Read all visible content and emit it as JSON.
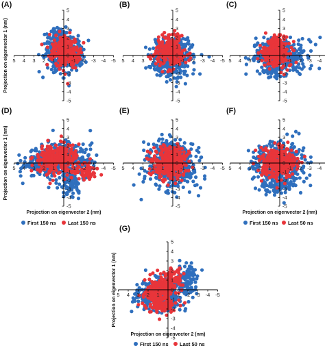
{
  "figure": {
    "colors": {
      "first": "#2f6fbd",
      "last": "#e8353a"
    }
  },
  "chart_data": [
    {
      "panel": "(A)",
      "type": "scatter",
      "xlabel": "",
      "ylabel": "Projection on eigenvector 1 (nm)",
      "xlim": [
        5,
        -5
      ],
      "ylim": [
        -5,
        5
      ],
      "x_reversed": true,
      "xticks": [
        5,
        4,
        3,
        2,
        1,
        0,
        -1,
        -2,
        -3,
        -4,
        -5
      ],
      "yticks": [
        5,
        4,
        3,
        2,
        1,
        0,
        -1,
        -2,
        -3,
        -4,
        -5
      ],
      "series": [
        {
          "name": "First 150 ns",
          "color": "#2f6fbd",
          "clusters": [
            {
              "cx": 0.3,
              "cy": 0.4,
              "sx": 0.8,
              "sy": 1.1,
              "n": 330
            },
            {
              "cx": -1.3,
              "cy": -0.1,
              "sx": 0.35,
              "sy": 0.7,
              "n": 90
            },
            {
              "cx": 0.5,
              "cy": 2.1,
              "sx": 0.5,
              "sy": 0.4,
              "n": 40
            }
          ]
        },
        {
          "name": "Last 150 ns",
          "color": "#e8353a",
          "clusters": [
            {
              "cx": 0.0,
              "cy": 0.5,
              "sx": 0.7,
              "sy": 0.9,
              "n": 220
            },
            {
              "cx": -0.9,
              "cy": 0.2,
              "sx": 0.3,
              "sy": 0.5,
              "n": 60
            }
          ]
        }
      ]
    },
    {
      "panel": "(B)",
      "type": "scatter",
      "xlabel": "",
      "ylabel": "",
      "xlim": [
        5,
        -5
      ],
      "ylim": [
        -5,
        5
      ],
      "x_reversed": true,
      "xticks": [
        5,
        4,
        3,
        2,
        1,
        0,
        -1,
        -2,
        -3,
        -4,
        -5
      ],
      "yticks": [
        5,
        4,
        3,
        2,
        1,
        0,
        -1,
        -2,
        -3,
        -4,
        -5
      ],
      "series": [
        {
          "name": "First 150 ns",
          "color": "#2f6fbd",
          "clusters": [
            {
              "cx": 0.1,
              "cy": -0.3,
              "sx": 1.0,
              "sy": 1.0,
              "n": 380
            },
            {
              "cx": 0.0,
              "cy": 1.4,
              "sx": 0.6,
              "sy": 0.4,
              "n": 40
            }
          ]
        },
        {
          "name": "Last 50 ns",
          "color": "#e8353a",
          "clusters": [
            {
              "cx": 0.2,
              "cy": 0.2,
              "sx": 0.75,
              "sy": 0.8,
              "n": 220
            },
            {
              "cx": 0.0,
              "cy": 1.7,
              "sx": 0.4,
              "sy": 0.4,
              "n": 30
            }
          ]
        }
      ]
    },
    {
      "panel": "(C)",
      "type": "scatter",
      "xlabel": "",
      "ylabel": "",
      "xlim": [
        5,
        -5
      ],
      "ylim": [
        -5,
        5
      ],
      "x_reversed": true,
      "xticks": [
        5,
        4,
        3,
        2,
        1,
        0,
        -1,
        -2,
        -3,
        -4,
        -5
      ],
      "yticks": [
        5,
        4,
        3,
        2,
        1,
        0,
        -1,
        -2,
        -3,
        -4,
        -5
      ],
      "series": [
        {
          "name": "First 150 ns",
          "color": "#2f6fbd",
          "clusters": [
            {
              "cx": 0.0,
              "cy": 0.0,
              "sx": 1.2,
              "sy": 0.95,
              "n": 400
            },
            {
              "cx": 0.8,
              "cy": -1.7,
              "sx": 0.5,
              "sy": 0.4,
              "n": 40
            }
          ]
        },
        {
          "name": "Last 50 ns",
          "color": "#e8353a",
          "clusters": [
            {
              "cx": 0.3,
              "cy": 0.3,
              "sx": 0.7,
              "sy": 0.8,
              "n": 220
            },
            {
              "cx": 0.2,
              "cy": 1.6,
              "sx": 0.35,
              "sy": 0.4,
              "n": 30
            }
          ]
        }
      ]
    },
    {
      "panel": "(D)",
      "type": "scatter",
      "xlabel": "Projection on eigenvector 2 (nm)",
      "ylabel": "Projection on eigenvector 1 (nm)",
      "xlim": [
        5,
        -5
      ],
      "ylim": [
        -5,
        5
      ],
      "x_reversed": true,
      "xticks": [
        5,
        4,
        3,
        2,
        1,
        0,
        -1,
        -2,
        -3,
        -4,
        -5
      ],
      "yticks": [
        5,
        4,
        3,
        2,
        1,
        0,
        -1,
        -2,
        -3,
        -4,
        -5
      ],
      "series": [
        {
          "name": "First 150 ns",
          "color": "#2f6fbd",
          "clusters": [
            {
              "cx": 0.5,
              "cy": 0.2,
              "sx": 1.6,
              "sy": 1.0,
              "n": 460
            },
            {
              "cx": -0.8,
              "cy": -2.4,
              "sx": 0.5,
              "sy": 0.8,
              "n": 70
            },
            {
              "cx": 2.6,
              "cy": -0.2,
              "sx": 0.6,
              "sy": 0.5,
              "n": 50
            }
          ]
        },
        {
          "name": "Last 150 ns",
          "color": "#e8353a",
          "clusters": [
            {
              "cx": 0.7,
              "cy": 0.3,
              "sx": 1.1,
              "sy": 0.85,
              "n": 300
            },
            {
              "cx": -2.4,
              "cy": -0.8,
              "sx": 0.5,
              "sy": 0.5,
              "n": 60
            }
          ]
        }
      ]
    },
    {
      "panel": "(E)",
      "type": "scatter",
      "xlabel": "",
      "ylabel": "",
      "xlim": [
        5,
        -5
      ],
      "ylim": [
        -5,
        5
      ],
      "x_reversed": true,
      "xticks": [
        5,
        4,
        3,
        2,
        1,
        0,
        -1,
        -2,
        -3,
        -4,
        -5
      ],
      "yticks": [
        5,
        4,
        3,
        2,
        1,
        0,
        -1,
        -2,
        -3,
        -4,
        -5
      ],
      "series": [
        {
          "name": "First 150 ns",
          "color": "#2f6fbd",
          "clusters": [
            {
              "cx": 0.1,
              "cy": -0.3,
              "sx": 1.2,
              "sy": 1.3,
              "n": 480
            },
            {
              "cx": 0.0,
              "cy": 1.7,
              "sx": 0.5,
              "sy": 0.4,
              "n": 40
            }
          ]
        },
        {
          "name": "Last 50 ns",
          "color": "#e8353a",
          "clusters": [
            {
              "cx": 0.3,
              "cy": 0.1,
              "sx": 0.9,
              "sy": 0.9,
              "n": 320
            }
          ]
        }
      ]
    },
    {
      "panel": "(F)",
      "type": "scatter",
      "xlabel": "Projection on eigenvector 2 (nm)",
      "ylabel": "",
      "xlim": [
        5,
        -5
      ],
      "ylim": [
        -5,
        5
      ],
      "x_reversed": true,
      "xticks": [
        5,
        4,
        3,
        2,
        1,
        0,
        -1,
        -2,
        -3,
        -4,
        -5
      ],
      "yticks": [
        5,
        4,
        3,
        2,
        1,
        0,
        -1,
        -2,
        -3,
        -4,
        -5
      ],
      "series": [
        {
          "name": "First 150 ns",
          "color": "#2f6fbd",
          "clusters": [
            {
              "cx": 0.0,
              "cy": -0.3,
              "sx": 1.3,
              "sy": 1.3,
              "n": 480
            },
            {
              "cx": 0.3,
              "cy": -2.6,
              "sx": 0.5,
              "sy": 0.4,
              "n": 40
            }
          ]
        },
        {
          "name": "Last 50 ns",
          "color": "#e8353a",
          "clusters": [
            {
              "cx": 0.2,
              "cy": 0.0,
              "sx": 0.9,
              "sy": 0.85,
              "n": 320
            }
          ]
        }
      ]
    },
    {
      "panel": "(G)",
      "type": "scatter",
      "xlabel": "Projection on eigenvector 2 (nm)",
      "ylabel": "Projection on eigenvector 1 (nm)",
      "xlim": [
        5,
        -5
      ],
      "ylim": [
        -5,
        5
      ],
      "x_reversed": true,
      "xticks": [
        5,
        4,
        3,
        2,
        1,
        0,
        -1,
        -2,
        -3,
        -4,
        -5
      ],
      "yticks": [
        5,
        4,
        3,
        2,
        1,
        0,
        -1,
        -2,
        -3,
        -4,
        -5
      ],
      "series": [
        {
          "name": "First 150 ns",
          "color": "#2f6fbd",
          "clusters": [
            {
              "cx": 0.8,
              "cy": -0.6,
              "sx": 1.2,
              "sy": 0.8,
              "n": 380
            },
            {
              "cx": -1.9,
              "cy": 1.1,
              "sx": 0.5,
              "sy": 0.8,
              "n": 90
            }
          ]
        },
        {
          "name": "Last 50 ns",
          "color": "#e8353a",
          "clusters": [
            {
              "cx": 0.8,
              "cy": -0.5,
              "sx": 0.8,
              "sy": 0.9,
              "n": 250
            },
            {
              "cx": -0.6,
              "cy": 1.3,
              "sx": 0.5,
              "sy": 0.6,
              "n": 70
            }
          ]
        }
      ]
    }
  ],
  "legends": {
    "row2": {
      "first": "First 150 ns",
      "last": "Last 150 ns"
    },
    "row2b": {
      "first": "First 150 ns",
      "last": "Last 50 ns"
    },
    "row3": {
      "first": "First 150 ns",
      "last": "Last 50 ns"
    }
  }
}
